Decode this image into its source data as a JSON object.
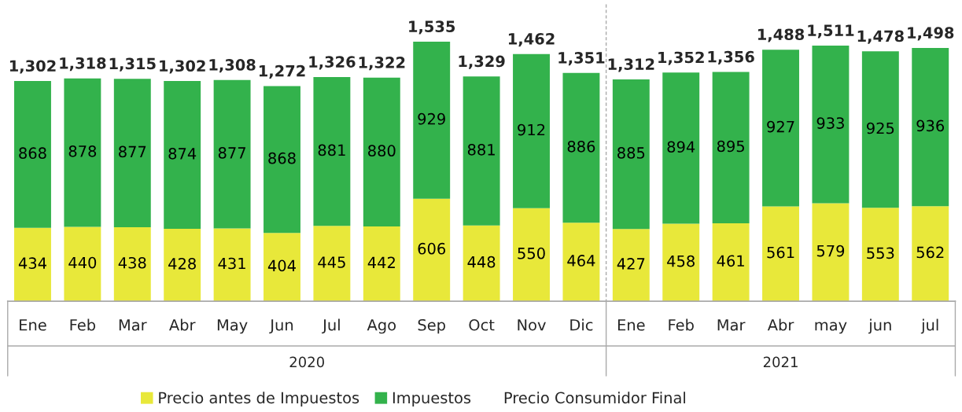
{
  "chart_data": {
    "type": "bar",
    "stacked": true,
    "data_labels": true,
    "categories": [
      "Ene",
      "Feb",
      "Mar",
      "Abr",
      "May",
      "Jun",
      "Jul",
      "Ago",
      "Sep",
      "Oct",
      "Nov",
      "Dic",
      "Ene",
      "Feb",
      "Mar",
      "Abr",
      "may",
      "jun",
      "jul"
    ],
    "series": [
      {
        "name": "Precio antes de Impuestos",
        "color": "#e8e83a",
        "values": [
          434,
          440,
          438,
          428,
          431,
          404,
          445,
          442,
          606,
          448,
          550,
          464,
          427,
          458,
          461,
          561,
          579,
          553,
          562
        ]
      },
      {
        "name": "Impuestos",
        "color": "#33b24c",
        "values": [
          868,
          878,
          877,
          874,
          877,
          868,
          881,
          880,
          929,
          881,
          912,
          886,
          885,
          894,
          895,
          927,
          933,
          925,
          936
        ]
      }
    ],
    "totals": [
      "1,302",
      "1,318",
      "1,315",
      "1,302",
      "1,308",
      "1,272",
      "1,326",
      "1,322",
      "1,535",
      "1,329",
      "1,462",
      "1,351",
      "1,312",
      "1,352",
      "1,356",
      "1,488",
      "1,511",
      "1,478",
      "1,498"
    ],
    "annotations": [
      "2020",
      "2021",
      "Precio Consumidor Final"
    ],
    "legend": "bottom"
  }
}
